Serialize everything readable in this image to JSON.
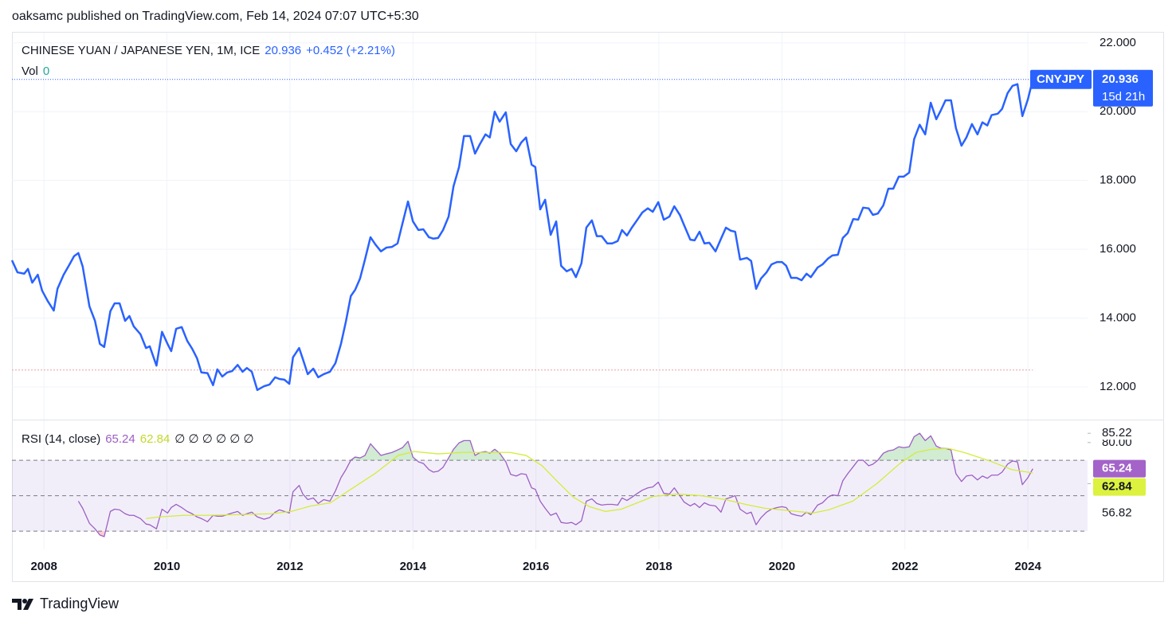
{
  "header": {
    "text": "oaksamc published on TradingView.com, Feb 14, 2024 07:07 UTC+5:30"
  },
  "chart_data": [
    {
      "type": "line",
      "title": "CHINESE YUAN / JAPANESE YEN, 1M, ICE",
      "change": "+0.452 (+2.21%)",
      "volume_label": "Vol",
      "volume": 0,
      "countdown": "15d 21h",
      "x": [
        2007.48,
        2007.57,
        2007.68,
        2007.74,
        2007.81,
        2007.9,
        2007.97,
        2008.06,
        2008.16,
        2008.22,
        2008.32,
        2008.41,
        2008.49,
        2008.56,
        2008.63,
        2008.74,
        2008.83,
        2008.91,
        2008.98,
        2009.08,
        2009.15,
        2009.23,
        2009.32,
        2009.39,
        2009.46,
        2009.57,
        2009.66,
        2009.72,
        2009.83,
        2009.92,
        2010.01,
        2010.07,
        2010.15,
        2010.24,
        2010.33,
        2010.41,
        2010.49,
        2010.56,
        2010.66,
        2010.75,
        2010.82,
        2010.9,
        2010.98,
        2011.06,
        2011.15,
        2011.23,
        2011.3,
        2011.38,
        2011.47,
        2011.58,
        2011.67,
        2011.76,
        2011.83,
        2011.91,
        2011.99,
        2012.05,
        2012.15,
        2012.21,
        2012.29,
        2012.38,
        2012.46,
        2012.55,
        2012.65,
        2012.74,
        2012.83,
        2012.91,
        2012.99,
        2013.06,
        2013.14,
        2013.22,
        2013.31,
        2013.39,
        2013.48,
        2013.57,
        2013.66,
        2013.75,
        2013.83,
        2013.92,
        2014.0,
        2014.09,
        2014.17,
        2014.26,
        2014.33,
        2014.41,
        2014.49,
        2014.58,
        2014.66,
        2014.75,
        2014.83,
        2014.93,
        2015.01,
        2015.09,
        2015.18,
        2015.25,
        2015.33,
        2015.41,
        2015.51,
        2015.59,
        2015.68,
        2015.76,
        2015.84,
        2015.93,
        2015.99,
        2016.07,
        2016.15,
        2016.24,
        2016.33,
        2016.41,
        2016.5,
        2016.58,
        2016.65,
        2016.74,
        2016.82,
        2016.91,
        2016.99,
        2017.07,
        2017.16,
        2017.24,
        2017.33,
        2017.4,
        2017.48,
        2017.56,
        2017.65,
        2017.73,
        2017.82,
        2017.9,
        2017.99,
        2018.08,
        2018.17,
        2018.25,
        2018.34,
        2018.41,
        2018.51,
        2018.58,
        2018.66,
        2018.74,
        2018.82,
        2018.92,
        2019.01,
        2019.09,
        2019.17,
        2019.24,
        2019.32,
        2019.43,
        2019.5,
        2019.58,
        2019.66,
        2019.75,
        2019.83,
        2019.92,
        2020.0,
        2020.07,
        2020.15,
        2020.24,
        2020.32,
        2020.4,
        2020.47,
        2020.58,
        2020.66,
        2020.75,
        2020.82,
        2020.91,
        2020.99,
        2021.07,
        2021.16,
        2021.24,
        2021.32,
        2021.41,
        2021.48,
        2021.56,
        2021.65,
        2021.73,
        2021.81,
        2021.9,
        2021.98,
        2022.07,
        2022.15,
        2022.24,
        2022.33,
        2022.42,
        2022.51,
        2022.59,
        2022.66,
        2022.75,
        2022.83,
        2022.92,
        2023.0,
        2023.09,
        2023.18,
        2023.26,
        2023.34,
        2023.41,
        2023.51,
        2023.58,
        2023.67,
        2023.75,
        2023.83,
        2023.91,
        2024.0,
        2024.08
      ],
      "series": [
        {
          "name": "CNYJPY",
          "color": "#2962ff",
          "values": [
            15.68,
            15.33,
            15.29,
            15.43,
            15.03,
            15.26,
            14.8,
            14.5,
            14.22,
            14.85,
            15.26,
            15.54,
            15.8,
            15.89,
            15.5,
            14.34,
            13.92,
            13.25,
            13.16,
            14.2,
            14.43,
            14.43,
            13.92,
            14.06,
            13.76,
            13.53,
            13.13,
            13.18,
            12.62,
            13.6,
            13.25,
            13.04,
            13.69,
            13.74,
            13.34,
            13.11,
            12.83,
            12.42,
            12.4,
            12.05,
            12.51,
            12.3,
            12.42,
            12.46,
            12.64,
            12.44,
            12.55,
            12.44,
            11.91,
            12.02,
            12.07,
            12.28,
            12.23,
            12.21,
            12.09,
            12.86,
            13.13,
            12.81,
            12.37,
            12.53,
            12.28,
            12.37,
            12.44,
            12.69,
            13.25,
            13.9,
            14.64,
            14.82,
            15.15,
            15.7,
            16.35,
            16.14,
            15.94,
            16.05,
            16.07,
            16.17,
            16.75,
            17.39,
            16.81,
            16.56,
            16.58,
            16.35,
            16.31,
            16.33,
            16.56,
            16.95,
            17.83,
            18.39,
            19.29,
            19.29,
            18.78,
            19.06,
            19.34,
            19.25,
            20.0,
            19.71,
            19.98,
            19.06,
            18.85,
            19.1,
            19.25,
            18.46,
            18.39,
            17.16,
            17.44,
            16.42,
            16.81,
            15.52,
            15.36,
            15.43,
            15.19,
            15.59,
            16.63,
            16.84,
            16.38,
            16.38,
            16.17,
            16.17,
            16.24,
            16.56,
            16.4,
            16.63,
            16.86,
            17.07,
            17.19,
            17.09,
            17.37,
            16.86,
            16.95,
            17.25,
            17.0,
            16.7,
            16.28,
            16.26,
            16.51,
            16.17,
            16.19,
            15.94,
            16.31,
            16.63,
            16.54,
            16.51,
            15.7,
            15.75,
            15.66,
            14.85,
            15.15,
            15.33,
            15.56,
            15.63,
            15.63,
            15.52,
            15.17,
            15.17,
            15.1,
            15.29,
            15.19,
            15.47,
            15.56,
            15.73,
            15.82,
            15.84,
            16.33,
            16.47,
            16.88,
            16.86,
            17.21,
            17.19,
            17.0,
            17.04,
            17.28,
            17.76,
            17.76,
            18.11,
            18.11,
            18.23,
            19.2,
            19.62,
            19.34,
            20.26,
            19.78,
            20.06,
            20.33,
            20.33,
            19.52,
            19.01,
            19.25,
            19.64,
            19.34,
            19.69,
            19.6,
            19.9,
            19.94,
            20.08,
            20.54,
            20.75,
            20.8,
            19.87,
            20.36,
            20.936
          ]
        }
      ],
      "reference_line": 12.49,
      "xlim": [
        2007.48,
        2024.97
      ],
      "xticks": [
        2008,
        2010,
        2012,
        2014,
        2016,
        2018,
        2020,
        2022,
        2024
      ],
      "ylim": [
        11.05,
        22.32
      ],
      "yticks": [
        {
          "value": 12,
          "label": "12.000"
        },
        {
          "value": 14,
          "label": "14.000"
        },
        {
          "value": 16,
          "label": "16.000"
        },
        {
          "value": 18,
          "label": "18.000"
        },
        {
          "value": 20,
          "label": "20.000"
        },
        {
          "value": 22,
          "label": "22.000"
        }
      ],
      "grid": true
    },
    {
      "type": "line",
      "title": "RSI (14, close)",
      "na_values": "∅ ∅ ∅ ∅ ∅ ∅",
      "series": [
        {
          "color": "#9c5fc4",
          "x": [
            2008.56,
            2008.63,
            2008.74,
            2008.83,
            2008.91,
            2008.98,
            2009.08,
            2009.15,
            2009.23,
            2009.32,
            2009.39,
            2009.46,
            2009.57,
            2009.66,
            2009.72,
            2009.83,
            2009.92,
            2010.01,
            2010.07,
            2010.15,
            2010.24,
            2010.33,
            2010.41,
            2010.49,
            2010.56,
            2010.66,
            2010.75,
            2010.82,
            2010.9,
            2010.98,
            2011.06,
            2011.15,
            2011.23,
            2011.3,
            2011.38,
            2011.47,
            2011.58,
            2011.67,
            2011.76,
            2011.83,
            2011.91,
            2011.99,
            2012.05,
            2012.15,
            2012.21,
            2012.29,
            2012.38,
            2012.46,
            2012.55,
            2012.65,
            2012.74,
            2012.83,
            2012.91,
            2012.99,
            2013.06,
            2013.14,
            2013.22,
            2013.31,
            2013.39,
            2013.48,
            2013.57,
            2013.66,
            2013.75,
            2013.83,
            2013.92,
            2014.0,
            2014.09,
            2014.17,
            2014.26,
            2014.33,
            2014.41,
            2014.49,
            2014.58,
            2014.66,
            2014.75,
            2014.83,
            2014.93,
            2015.01,
            2015.09,
            2015.18,
            2015.25,
            2015.33,
            2015.41,
            2015.51,
            2015.59,
            2015.68,
            2015.76,
            2015.84,
            2015.93,
            2015.99,
            2016.07,
            2016.15,
            2016.24,
            2016.33,
            2016.41,
            2016.5,
            2016.58,
            2016.65,
            2016.74,
            2016.82,
            2016.91,
            2016.99,
            2017.07,
            2017.16,
            2017.24,
            2017.33,
            2017.4,
            2017.48,
            2017.56,
            2017.65,
            2017.73,
            2017.82,
            2017.9,
            2017.99,
            2018.08,
            2018.17,
            2018.25,
            2018.34,
            2018.41,
            2018.51,
            2018.58,
            2018.66,
            2018.74,
            2018.82,
            2018.92,
            2019.01,
            2019.09,
            2019.17,
            2019.24,
            2019.32,
            2019.43,
            2019.5,
            2019.58,
            2019.66,
            2019.75,
            2019.83,
            2019.92,
            2020.0,
            2020.07,
            2020.15,
            2020.24,
            2020.32,
            2020.4,
            2020.47,
            2020.58,
            2020.66,
            2020.75,
            2020.82,
            2020.91,
            2020.99,
            2021.07,
            2021.16,
            2021.24,
            2021.32,
            2021.41,
            2021.48,
            2021.56,
            2021.65,
            2021.73,
            2021.81,
            2021.9,
            2021.98,
            2022.07,
            2022.15,
            2022.24,
            2022.33,
            2022.42,
            2022.51,
            2022.59,
            2022.66,
            2022.75,
            2022.83,
            2022.92,
            2023.0,
            2023.09,
            2023.18,
            2023.26,
            2023.34,
            2023.41,
            2023.51,
            2023.58,
            2023.67,
            2023.75,
            2023.83,
            2023.91,
            2024.0,
            2024.08
          ],
          "values": [
            46.9,
            42.9,
            34.4,
            31.3,
            27.8,
            26.9,
            41.1,
            42.4,
            42.0,
            39.8,
            38.9,
            38.9,
            37.1,
            34.0,
            33.6,
            31.3,
            42.4,
            40.2,
            43.3,
            45.1,
            43.3,
            41.1,
            39.8,
            38.0,
            37.1,
            35.3,
            38.9,
            38.4,
            38.4,
            39.3,
            40.2,
            41.1,
            38.9,
            39.8,
            40.7,
            38.0,
            36.7,
            37.6,
            40.7,
            42.0,
            41.1,
            40.2,
            52.2,
            55.8,
            50.9,
            47.8,
            48.7,
            45.6,
            47.8,
            46.9,
            52.7,
            60.2,
            64.7,
            70.0,
            71.8,
            71.3,
            72.7,
            79.3,
            76.2,
            72.7,
            73.6,
            74.4,
            75.8,
            77.1,
            80.7,
            71.8,
            69.1,
            68.2,
            64.7,
            63.3,
            63.8,
            66.0,
            71.3,
            76.2,
            79.8,
            81.1,
            81.1,
            72.7,
            74.4,
            74.9,
            74.0,
            76.2,
            74.0,
            69.1,
            62.0,
            61.1,
            62.4,
            62.0,
            54.4,
            53.6,
            46.9,
            42.9,
            38.9,
            40.2,
            34.9,
            34.4,
            34.9,
            33.6,
            35.8,
            46.9,
            48.2,
            45.6,
            44.7,
            45.1,
            45.1,
            44.7,
            48.7,
            47.3,
            49.1,
            51.3,
            53.1,
            54.4,
            54.9,
            57.6,
            51.3,
            50.9,
            54.4,
            50.0,
            46.4,
            44.2,
            45.6,
            43.3,
            46.0,
            44.7,
            44.2,
            40.7,
            48.2,
            49.1,
            50.0,
            42.4,
            39.8,
            40.7,
            33.6,
            37.6,
            40.7,
            42.4,
            43.3,
            43.8,
            43.3,
            39.8,
            38.9,
            38.4,
            40.7,
            39.3,
            44.7,
            46.0,
            49.1,
            50.4,
            50.0,
            58.4,
            62.4,
            66.4,
            70.0,
            70.0,
            66.9,
            67.8,
            70.0,
            74.0,
            75.3,
            75.8,
            77.6,
            77.1,
            77.6,
            83.3,
            85.22,
            81.1,
            83.8,
            78.0,
            76.7,
            76.7,
            75.8,
            62.4,
            58.0,
            61.1,
            61.6,
            58.9,
            61.1,
            59.8,
            61.6,
            61.6,
            63.3,
            67.8,
            69.6,
            69.1,
            56.2,
            60.2,
            65.24
          ]
        },
        {
          "color": "#d4ec3a",
          "x": [
            2009.66,
            2009.88,
            2010.27,
            2010.66,
            2011.17,
            2011.69,
            2012.02,
            2012.34,
            2012.66,
            2012.99,
            2013.38,
            2013.76,
            2014.02,
            2014.41,
            2014.8,
            2015.19,
            2015.58,
            2015.84,
            2016.1,
            2016.35,
            2016.61,
            2016.87,
            2017.13,
            2017.39,
            2017.65,
            2017.91,
            2018.3,
            2018.69,
            2019.08,
            2019.46,
            2019.72,
            2020.11,
            2020.5,
            2020.76,
            2021.15,
            2021.54,
            2021.92,
            2022.18,
            2022.44,
            2022.7,
            2022.96,
            2023.35,
            2023.74,
            2024.08
          ],
          "values": [
            37.1,
            38.0,
            38.9,
            38.9,
            39.3,
            39.8,
            41.1,
            44.2,
            46.0,
            53.6,
            62.4,
            72.7,
            74.9,
            73.6,
            74.4,
            74.4,
            74.4,
            72.7,
            66.9,
            58.0,
            49.1,
            43.8,
            41.1,
            42.4,
            46.0,
            49.6,
            50.9,
            50.0,
            47.8,
            44.7,
            42.9,
            41.6,
            40.2,
            42.0,
            46.9,
            56.7,
            68.2,
            74.4,
            76.2,
            76.7,
            74.4,
            70.0,
            64.7,
            62.84
          ]
        }
      ],
      "band_lines": [
        70,
        50,
        30
      ],
      "xlim": [
        2007.48,
        2024.97
      ],
      "ylim": [
        19.7,
        92.5
      ],
      "yticks": [
        56.82,
        {
          "value": 80,
          "label": "80.00"
        },
        85.22
      ]
    }
  ],
  "footer": {
    "brand": "TradingView"
  }
}
